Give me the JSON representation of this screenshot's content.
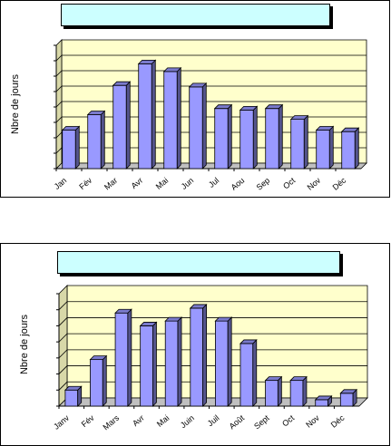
{
  "chart_data": [
    {
      "type": "bar",
      "title": "",
      "ylabel": "Nbre de jours",
      "xlabel": "",
      "categories": [
        "Jan",
        "Fév",
        "Mar",
        "Avr",
        "Mai",
        "Jun",
        "Jul",
        "Aou",
        "Sep",
        "Oct",
        "Nov",
        "Déc"
      ],
      "values": [
        2.5,
        3.5,
        5.4,
        6.8,
        6.3,
        5.3,
        3.9,
        3.8,
        3.9,
        3.2,
        2.5,
        2.4
      ],
      "ylim": [
        0,
        8
      ],
      "grid": true,
      "bar_color": "#9999ff",
      "plot_bg": "#ffffcc"
    },
    {
      "type": "bar",
      "title": "",
      "ylabel": "Nbre de jours",
      "xlabel": "",
      "categories": [
        "Janv",
        "Fév",
        "Mars",
        "Avr",
        "Mai",
        "Juin",
        "Juil",
        "Août",
        "Sept",
        "Oct",
        "Nov",
        "Déc"
      ],
      "values": [
        1.0,
        2.9,
        5.8,
        5.0,
        5.3,
        6.1,
        5.3,
        3.9,
        1.6,
        1.6,
        0.4,
        0.8
      ],
      "ylim": [
        0,
        7
      ],
      "grid": true,
      "bar_color": "#9999ff",
      "plot_bg": "#ffffcc"
    }
  ]
}
